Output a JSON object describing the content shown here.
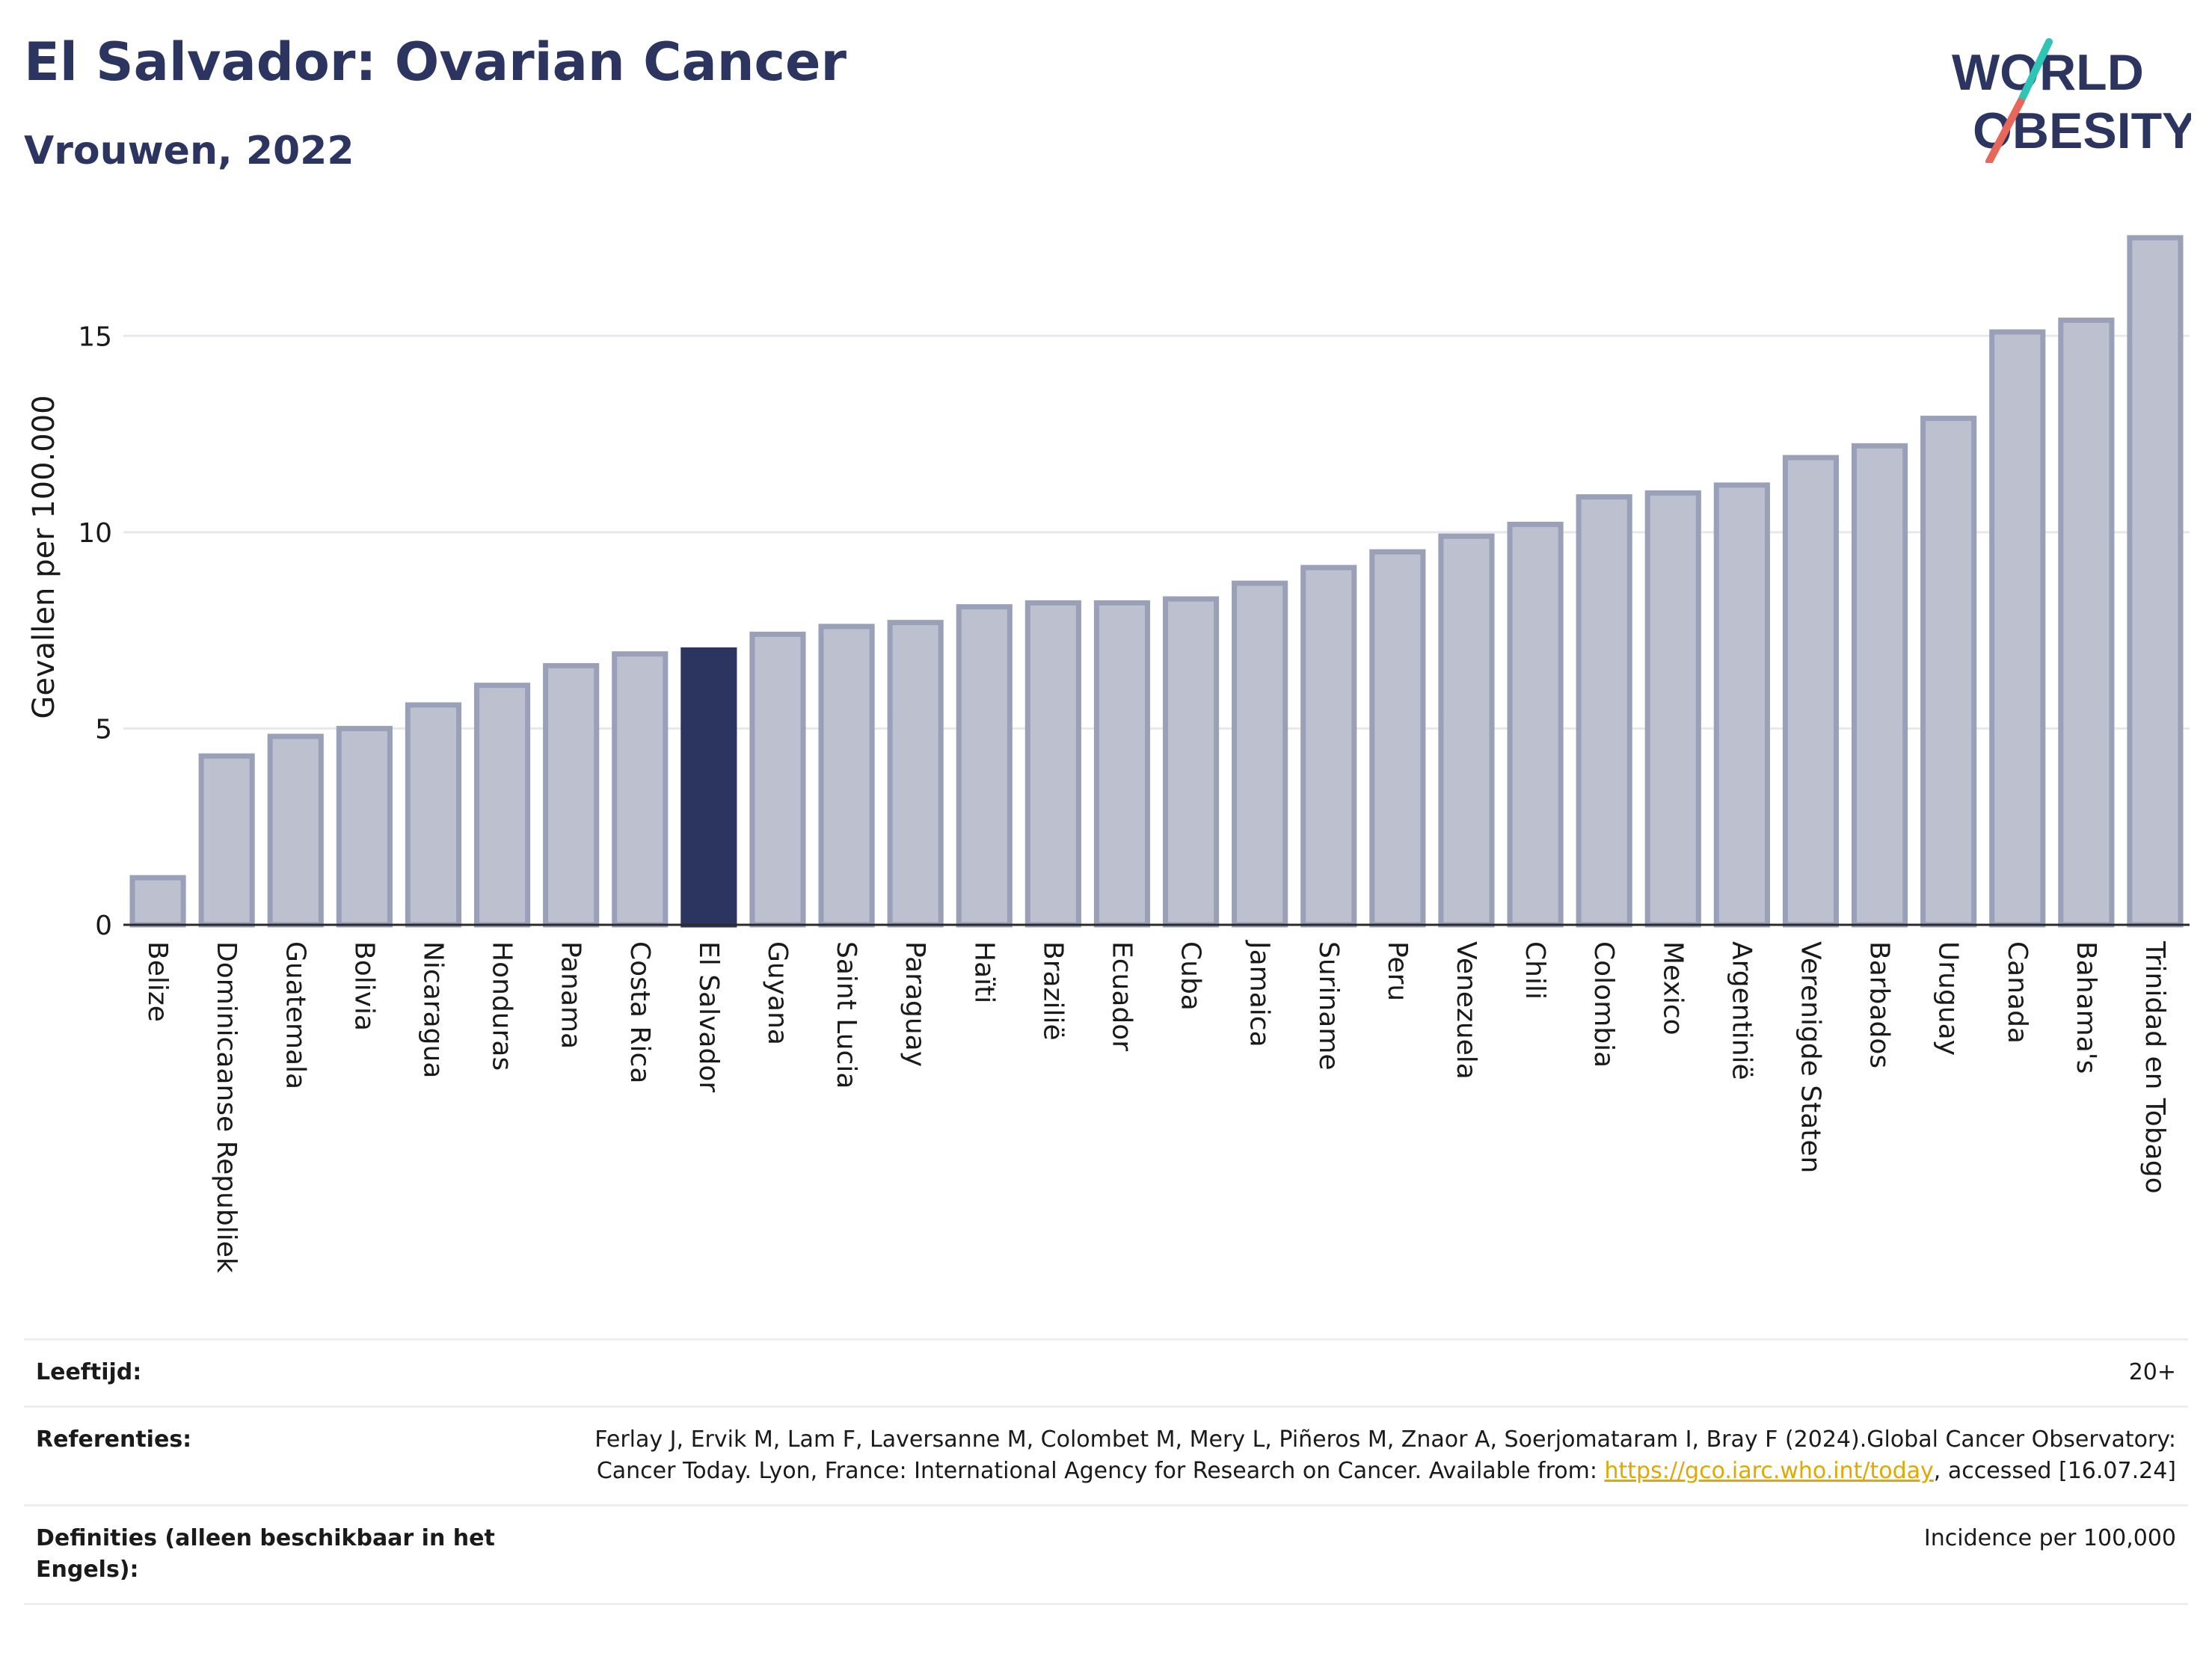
{
  "header": {
    "title": "El Salvador: Ovarian Cancer",
    "subtitle": "Vrouwen, 2022"
  },
  "logo": {
    "line1": "WORLD",
    "line2": "OBESITY",
    "accent_colors": [
      "#2ec4b6",
      "#e8675a"
    ]
  },
  "colors": {
    "bar": "#bcc0cf",
    "bar_border": "#9aa0b8",
    "highlight": "#2b3560",
    "title": "#2b3560"
  },
  "chart_data": {
    "type": "bar",
    "ylabel": "Gevallen per 100.000",
    "ylim": [
      0,
      17.5
    ],
    "yticks": [
      0,
      5,
      10,
      15
    ],
    "grid": true,
    "highlight": "El Salvador",
    "categories": [
      "Belize",
      "Dominicaanse Republiek",
      "Guatemala",
      "Bolivia",
      "Nicaragua",
      "Honduras",
      "Panama",
      "Costa Rica",
      "El Salvador",
      "Guyana",
      "Saint Lucia",
      "Paraguay",
      "Haïti",
      "Brazilië",
      "Ecuador",
      "Cuba",
      "Jamaica",
      "Suriname",
      "Peru",
      "Venezuela",
      "Chili",
      "Colombia",
      "Mexico",
      "Argentinië",
      "Verenigde Staten",
      "Barbados",
      "Uruguay",
      "Canada",
      "Bahama's",
      "Trinidad en Tobago"
    ],
    "values": [
      1.2,
      4.3,
      4.8,
      5.0,
      5.6,
      6.1,
      6.6,
      6.9,
      7.0,
      7.4,
      7.6,
      7.7,
      8.1,
      8.2,
      8.2,
      8.3,
      8.7,
      9.1,
      9.5,
      9.9,
      10.2,
      10.9,
      11.0,
      11.2,
      11.9,
      12.2,
      12.9,
      15.1,
      15.4,
      17.5
    ]
  },
  "info": {
    "age_label": "Leeftijd:",
    "age_value": "20+",
    "ref_label": "Referenties:",
    "ref_text_1": "Ferlay J, Ervik M, Lam F, Laversanne M, Colombet M, Mery L, Piñeros M, Znaor A, Soerjomataram I, Bray F (2024).Global Cancer Observatory: Cancer Today. Lyon, France: International Agency for Research on Cancer. Available from: ",
    "ref_link": "https://gco.iarc.who.int/today",
    "ref_text_2": ", accessed [16.07.24]",
    "def_label": "Definities (alleen beschikbaar in het Engels):",
    "def_value": "Incidence per 100,000"
  }
}
